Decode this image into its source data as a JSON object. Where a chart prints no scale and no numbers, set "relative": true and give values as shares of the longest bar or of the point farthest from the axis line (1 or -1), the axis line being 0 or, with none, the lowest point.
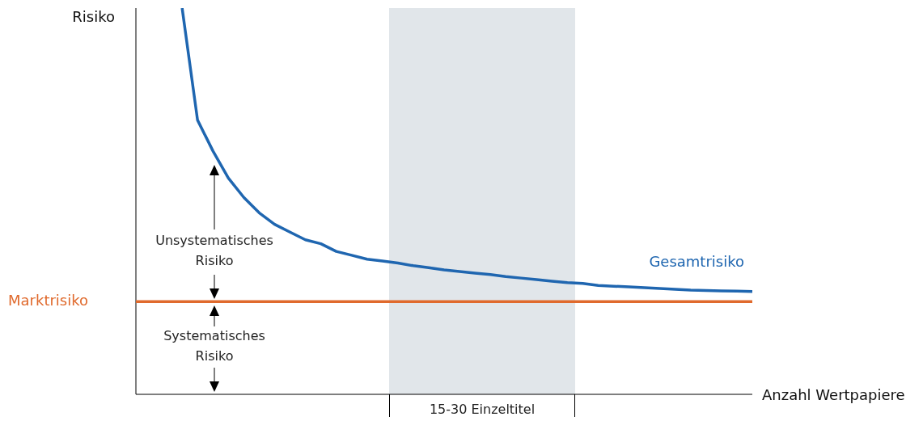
{
  "chart_data": {
    "type": "line",
    "relative": true,
    "ylabel": "Risiko",
    "xlabel": "Anzahl Wertpapiere",
    "legend": false,
    "marker": "none",
    "line_style": "solid",
    "categories": [
      null,
      null,
      null,
      null,
      null,
      null,
      null,
      null,
      null,
      null,
      null,
      null,
      null,
      null,
      null,
      null,
      null,
      null,
      null,
      null,
      null,
      null,
      null,
      null,
      null,
      null,
      null,
      null,
      null,
      null,
      null,
      null,
      null,
      null,
      null,
      null,
      null,
      null,
      null,
      null,
      null
    ],
    "series": [
      {
        "name": "Gesamtrisiko",
        "color": "#1f66b0",
        "values": [
          null,
          null,
          null,
          1.0,
          0.71,
          0.63,
          0.56,
          0.51,
          0.47,
          0.44,
          0.42,
          0.4,
          0.39,
          0.37,
          0.36,
          0.35,
          0.345,
          0.34,
          0.333,
          0.328,
          0.322,
          0.318,
          0.314,
          0.31,
          0.305,
          0.301,
          0.297,
          0.293,
          0.289,
          0.287,
          0.282,
          0.28,
          0.278,
          0.276,
          0.274,
          0.272,
          0.27,
          0.269,
          0.268,
          0.267,
          0.266
        ]
      }
    ],
    "ref_lines": [
      {
        "axis": "y",
        "value": 0.24,
        "label": "Marktrisiko",
        "color": "#e06a2d"
      }
    ],
    "annotations": [
      "Unsystematisches Risiko",
      "Systematisches Risiko",
      "15-30 Einzeltitel"
    ]
  }
}
